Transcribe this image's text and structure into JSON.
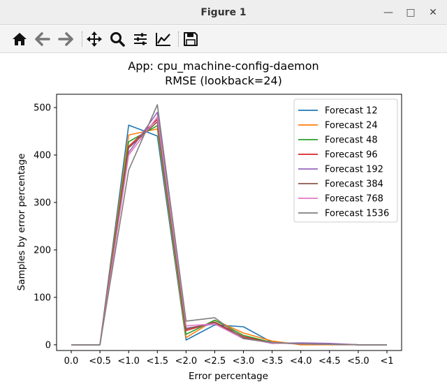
{
  "window": {
    "title": "Figure 1",
    "minimize_glyph": "—",
    "maximize_glyph": "□",
    "close_glyph": "✕"
  },
  "toolbar": {
    "icons": [
      "home-icon",
      "back-arrow-icon",
      "forward-arrow-icon",
      "pan-icon",
      "zoom-icon",
      "subplots-icon",
      "edit-lines-icon",
      "save-icon"
    ]
  },
  "chart_data": {
    "type": "line",
    "title": "App: cpu_machine-config-daemon",
    "subtitle": "RMSE (lookback=24)",
    "xlabel": "Error percentage",
    "ylabel": "Samples by error percentage",
    "categories": [
      "0.0",
      "<0.5",
      "<1.0",
      "<1.5",
      "<2.0",
      "<2.5",
      "<3.0",
      "<3.5",
      "<4.0",
      "<4.5",
      "<5.0",
      "<1"
    ],
    "ylim": [
      -12,
      528
    ],
    "yticks": [
      0,
      100,
      200,
      300,
      400,
      500
    ],
    "grid": false,
    "legend_position": "top-right",
    "series": [
      {
        "name": "Forecast 12",
        "color": "#1f77b4",
        "values": [
          0,
          0,
          463,
          440,
          10,
          42,
          38,
          5,
          2,
          1,
          0,
          0
        ]
      },
      {
        "name": "Forecast 24",
        "color": "#ff7f0e",
        "values": [
          0,
          0,
          442,
          455,
          15,
          52,
          25,
          8,
          0,
          0,
          0,
          0
        ]
      },
      {
        "name": "Forecast 48",
        "color": "#2ca02c",
        "values": [
          0,
          0,
          428,
          462,
          22,
          52,
          20,
          5,
          2,
          1,
          0,
          0
        ]
      },
      {
        "name": "Forecast 96",
        "color": "#d62728",
        "values": [
          0,
          0,
          418,
          475,
          30,
          48,
          17,
          4,
          2,
          1,
          0,
          0
        ]
      },
      {
        "name": "Forecast 192",
        "color": "#9467bd",
        "values": [
          0,
          0,
          405,
          490,
          35,
          44,
          15,
          3,
          4,
          3,
          0,
          0
        ]
      },
      {
        "name": "Forecast 384",
        "color": "#8c564b",
        "values": [
          0,
          0,
          415,
          470,
          33,
          47,
          14,
          5,
          2,
          1,
          0,
          0
        ]
      },
      {
        "name": "Forecast 768",
        "color": "#e377c2",
        "values": [
          0,
          0,
          400,
          480,
          40,
          44,
          13,
          4,
          2,
          1,
          0,
          0
        ]
      },
      {
        "name": "Forecast 1536",
        "color": "#7f7f7f",
        "values": [
          0,
          0,
          368,
          506,
          50,
          57,
          13,
          5,
          2,
          1,
          0,
          0
        ]
      }
    ]
  }
}
